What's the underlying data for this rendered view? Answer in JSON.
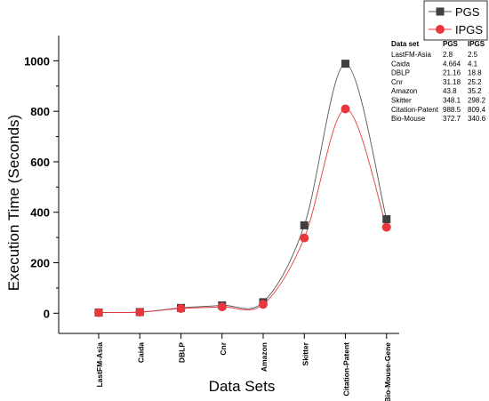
{
  "chart_data": {
    "type": "line",
    "title": "",
    "xlabel": "Data Sets",
    "ylabel": "Execution Time (Seconds)",
    "categories": [
      "LastFM-Asia",
      "Caida",
      "DBLP",
      "Cnr",
      "Amazon",
      "Skitter",
      "Citation-Patent",
      "Bio-Mouse-Gene"
    ],
    "ylim": [
      -80,
      1100
    ],
    "yticks": [
      0,
      200,
      400,
      600,
      800,
      1000
    ],
    "grid": false,
    "legend_position": "top-right",
    "series": [
      {
        "name": "PGS",
        "marker": "square",
        "color": "#404040",
        "line_color": "#555555",
        "values": [
          2.8,
          4.664,
          21.16,
          31.18,
          43.8,
          348.1,
          988.5,
          372.7
        ]
      },
      {
        "name": "IPGS",
        "marker": "circle",
        "color": "#e8383d",
        "line_color": "#e8383d",
        "values": [
          2.5,
          4.1,
          18.8,
          25.2,
          35.2,
          298.2,
          809.4,
          340.6
        ]
      }
    ],
    "table": {
      "headers": [
        "Data set",
        "PGS",
        "IPGS"
      ],
      "rows": [
        [
          "LastFM-Asia",
          "2.8",
          "2.5"
        ],
        [
          "Caida",
          "4.664",
          "4.1"
        ],
        [
          "DBLP",
          "21.16",
          "18.8"
        ],
        [
          "Cnr",
          "31.18",
          "25.2"
        ],
        [
          "Amazon",
          "43.8",
          "35.2"
        ],
        [
          "Skitter",
          "348.1",
          "298.2"
        ],
        [
          "Citation-Patent",
          "988.5",
          "809.4"
        ],
        [
          "Bio-Mouse",
          "372.7",
          "340.6"
        ]
      ]
    }
  }
}
